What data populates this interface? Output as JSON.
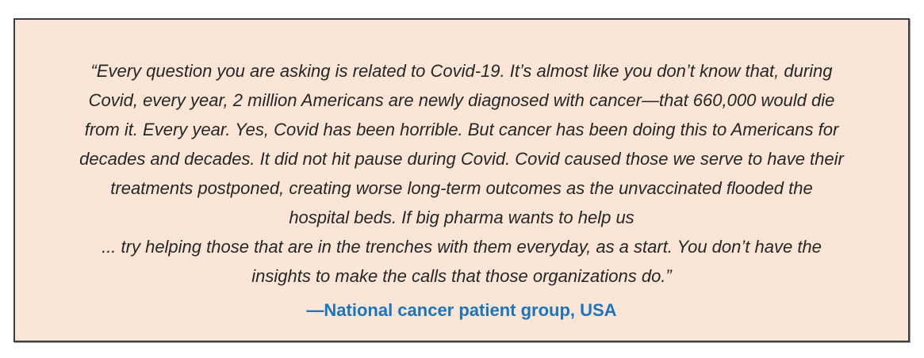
{
  "quote_box": {
    "background_color": "#FBE5D6",
    "border_color": "#3F3F3F",
    "text_color": "#262626",
    "attribution_color": "#1B75BC",
    "lines": [
      "“Every question you are asking is related to Covid-19. It’s almost like you don’t know that, during",
      "Covid, every year, 2 million Americans are newly diagnosed with cancer—that 660,000 would die",
      "from it. Every year. Yes, Covid has been horrible. But cancer has been doing this to Americans for",
      "decades and decades. It did not hit pause during Covid. Covid caused those we serve to have their",
      "treatments postponed, creating worse long-term outcomes as the unvaccinated flooded the",
      "hospital beds. If big pharma wants to help us",
      "... try helping those that are in the trenches with them everyday, as a start. You don’t have the",
      "insights to make the calls that those organizations do.”"
    ],
    "attribution": "—National cancer patient group, USA"
  }
}
